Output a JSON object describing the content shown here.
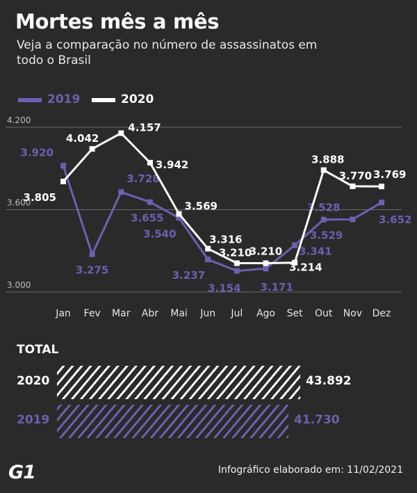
{
  "header": {
    "title": "Mortes mês a mês",
    "subtitle": "Veja a comparação no número de assassinatos em todo o Brasil"
  },
  "colors": {
    "series_2019": "#6f5fb0",
    "series_2020": "#ffffff",
    "grid": "#6a6a6a",
    "tick": "#bdbdbd"
  },
  "chart_data": {
    "type": "line",
    "categories": [
      "Jan",
      "Fev",
      "Mar",
      "Abr",
      "Mai",
      "Jun",
      "Jul",
      "Ago",
      "Set",
      "Out",
      "Nov",
      "Dez"
    ],
    "series": [
      {
        "name": "2019",
        "values": [
          3920,
          3275,
          3728,
          3655,
          3540,
          3237,
          3154,
          3171,
          3341,
          3528,
          3529,
          3652
        ],
        "labels": [
          "3.920",
          "3.275",
          "3.728",
          "3.655",
          "3.540",
          "3.237",
          "3.154",
          "3.171",
          "3.341",
          "3.528",
          "3.529",
          "3.652"
        ]
      },
      {
        "name": "2020",
        "values": [
          3805,
          4042,
          4157,
          3942,
          3569,
          3316,
          3210,
          3210,
          3214,
          3888,
          3770,
          3769
        ],
        "labels": [
          "3.805",
          "4.042",
          "4.157",
          "3.942",
          "3.569",
          "3.316",
          "3.210",
          "3.210",
          "3.214",
          "3.888",
          "3.770",
          "3.769"
        ]
      }
    ],
    "yticks": [
      {
        "value": 4200,
        "label": "4.200"
      },
      {
        "value": 3600,
        "label": "3.600"
      },
      {
        "value": 3000,
        "label": "3.000"
      }
    ],
    "ylim": [
      3000,
      4200
    ],
    "grid": true,
    "legend": "top-left"
  },
  "totals": {
    "title": "TOTAL",
    "rows": [
      {
        "year": "2020",
        "value": 43892,
        "label": "43.892"
      },
      {
        "year": "2019",
        "value": 41730,
        "label": "41.730"
      }
    ]
  },
  "footer": {
    "logo": "G1",
    "note": "Infográfico elaborado em: 11/02/2021"
  }
}
